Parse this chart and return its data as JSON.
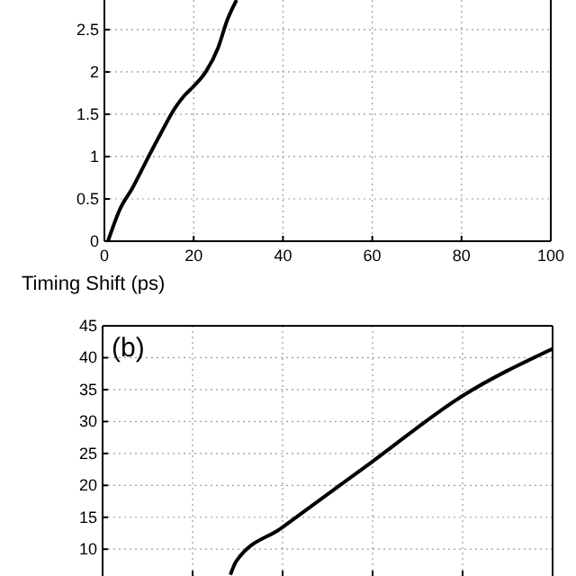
{
  "chart_data": [
    {
      "type": "line",
      "xlabel": "Timing Shift (ps)",
      "xlim": [
        0,
        100
      ],
      "xticks": [
        0,
        20,
        40,
        60,
        80,
        100
      ],
      "ylim": [
        0,
        2.85
      ],
      "yticks": [
        0,
        0.5,
        1,
        1.5,
        2,
        2.5
      ],
      "grid": true,
      "line_style": "solid",
      "marker": "none",
      "series": [
        {
          "color": "#000000",
          "x": [
            0.8,
            3.5,
            6.3,
            9.7,
            12.5,
            15.9,
            17.9,
            20,
            22.7,
            25.5,
            27.5,
            29.6
          ],
          "values": [
            0,
            0.38,
            0.63,
            0.98,
            1.26,
            1.58,
            1.72,
            1.83,
            2.0,
            2.29,
            2.61,
            2.85
          ]
        }
      ]
    },
    {
      "type": "line",
      "annotations": [
        "(b)"
      ],
      "xlim": [
        0,
        100
      ],
      "xticks": [
        0,
        20,
        40,
        60,
        80,
        100
      ],
      "ylim": [
        5.8,
        45
      ],
      "yticks": [
        10,
        15,
        20,
        25,
        30,
        35,
        40,
        45
      ],
      "grid": true,
      "tick_labels": "y",
      "line_style": "solid",
      "marker": "none",
      "series": [
        {
          "color": "#000000",
          "x": [
            28.4,
            29.7,
            39.7,
            59.7,
            79.7,
            100
          ],
          "values": [
            6.0,
            8.1,
            13.3,
            23.6,
            33.9,
            41.4
          ]
        }
      ]
    }
  ]
}
